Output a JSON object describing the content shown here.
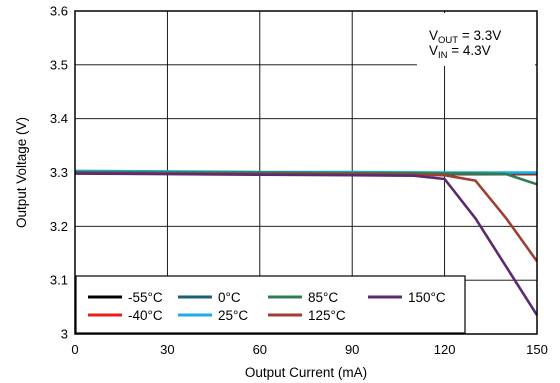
{
  "chart_data": {
    "type": "line",
    "title": "",
    "xlabel": "Output Current (mA)",
    "ylabel": "Output Voltage (V)",
    "xlim": [
      0,
      150
    ],
    "ylim": [
      3.0,
      3.6
    ],
    "xticks": [
      0,
      30,
      60,
      90,
      120,
      150
    ],
    "xtick_labels": [
      "0",
      "30",
      "60",
      "90",
      "120",
      "150"
    ],
    "yticks": [
      3.0,
      3.1,
      3.2,
      3.3,
      3.4,
      3.5,
      3.6
    ],
    "ytick_labels": [
      "3",
      "3.1",
      "3.2",
      "3.3",
      "3.4",
      "3.5",
      "3.6"
    ],
    "grid": true,
    "legend_position": "bottom-left",
    "annotation": {
      "line1": {
        "prefix": "V",
        "sub": "OUT",
        "suffix": " = 3.3V"
      },
      "line2": {
        "prefix": "V",
        "sub": "IN",
        "suffix": " = 4.3V"
      }
    },
    "series": [
      {
        "name": "-55°C",
        "color": "#000000",
        "x": [
          0,
          30,
          60,
          90,
          120,
          150
        ],
        "y": [
          3.301,
          3.3,
          3.299,
          3.298,
          3.297,
          3.297
        ]
      },
      {
        "name": "-40°C",
        "color": "#e8201a",
        "x": [
          0,
          30,
          60,
          90,
          120,
          150
        ],
        "y": [
          3.301,
          3.3,
          3.3,
          3.299,
          3.298,
          3.298
        ]
      },
      {
        "name": "0°C",
        "color": "#1e5f74",
        "x": [
          0,
          30,
          60,
          90,
          120,
          150
        ],
        "y": [
          3.302,
          3.301,
          3.3,
          3.3,
          3.299,
          3.299
        ]
      },
      {
        "name": "25°C",
        "color": "#1aaee3",
        "x": [
          0,
          30,
          60,
          90,
          120,
          150
        ],
        "y": [
          3.303,
          3.302,
          3.301,
          3.301,
          3.3,
          3.3
        ]
      },
      {
        "name": "85°C",
        "color": "#2e7d4f",
        "x": [
          0,
          30,
          60,
          90,
          120,
          130,
          140,
          150
        ],
        "y": [
          3.301,
          3.3,
          3.3,
          3.299,
          3.298,
          3.298,
          3.297,
          3.278
        ]
      },
      {
        "name": "125°C",
        "color": "#a23e31",
        "x": [
          0,
          30,
          60,
          90,
          110,
          120,
          130,
          140,
          150
        ],
        "y": [
          3.299,
          3.298,
          3.297,
          3.297,
          3.296,
          3.295,
          3.285,
          3.215,
          3.135
        ]
      },
      {
        "name": "150°C",
        "color": "#5c2a6e",
        "x": [
          0,
          30,
          60,
          90,
          110,
          120,
          130,
          140,
          150
        ],
        "y": [
          3.298,
          3.297,
          3.296,
          3.295,
          3.294,
          3.288,
          3.215,
          3.125,
          3.035
        ]
      }
    ]
  }
}
